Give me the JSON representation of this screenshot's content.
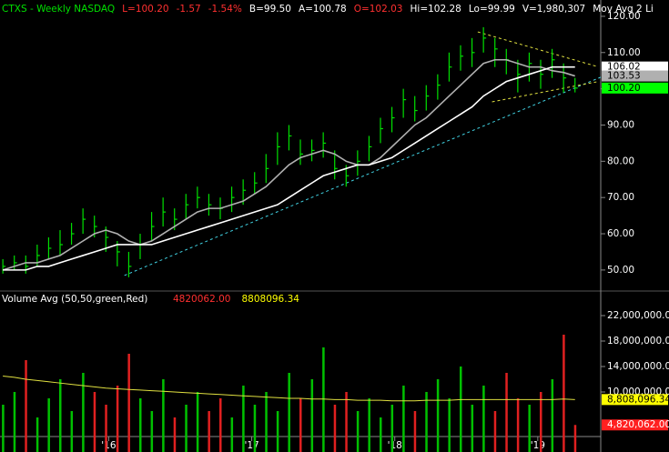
{
  "chart_data": {
    "type": "ohlc",
    "header": [
      {
        "text": "CTXS - Weekly  NASDAQ",
        "color": "#00e000"
      },
      {
        "text": "L=100.20",
        "color": "#ff3030"
      },
      {
        "text": "-1.57",
        "color": "#ff3030"
      },
      {
        "text": "-1.54%",
        "color": "#ff3030"
      },
      {
        "text": "B=99.50",
        "color": "#ffffff"
      },
      {
        "text": "A=100.78",
        "color": "#ffffff"
      },
      {
        "text": "O=102.03",
        "color": "#ff3030"
      },
      {
        "text": "Hi=102.28",
        "color": "#ffffff"
      },
      {
        "text": "Lo=99.99",
        "color": "#ffffff"
      },
      {
        "text": "V=1,980,307",
        "color": "#ffffff"
      },
      {
        "text": "Mov Avg 2 Li",
        "color": "#ffffff"
      }
    ],
    "x": [
      2015.26,
      2015.34,
      2015.42,
      2015.5,
      2015.58,
      2015.66,
      2015.74,
      2015.82,
      2015.9,
      2015.98,
      2016.06,
      2016.14,
      2016.22,
      2016.3,
      2016.38,
      2016.46,
      2016.54,
      2016.62,
      2016.7,
      2016.78,
      2016.86,
      2016.94,
      2017.02,
      2017.1,
      2017.18,
      2017.26,
      2017.34,
      2017.42,
      2017.5,
      2017.58,
      2017.66,
      2017.74,
      2017.82,
      2017.9,
      2017.98,
      2018.06,
      2018.14,
      2018.22,
      2018.3,
      2018.38,
      2018.46,
      2018.54,
      2018.62,
      2018.7,
      2018.78,
      2018.86,
      2018.94,
      2019.02,
      2019.1,
      2019.18,
      2019.26
    ],
    "xlim": [
      2015.24,
      2019.44
    ],
    "xticks": [
      {
        "value": 2016,
        "label": "'16"
      },
      {
        "value": 2017,
        "label": "'17"
      },
      {
        "value": 2018,
        "label": "'18"
      },
      {
        "value": 2019,
        "label": "'19"
      }
    ],
    "ylim": [
      44.7,
      124.5
    ],
    "yticks": [
      {
        "value": 120,
        "label": "120.00"
      },
      {
        "value": 110,
        "label": "110.00"
      },
      {
        "value": 100,
        "label": "100.00"
      },
      {
        "value": 90,
        "label": "90.00"
      },
      {
        "value": 80,
        "label": "80.00"
      },
      {
        "value": 70,
        "label": "70.00"
      },
      {
        "value": 60,
        "label": "60.00"
      },
      {
        "value": 50,
        "label": "50.00"
      }
    ],
    "bar_color": "#00e000",
    "high": [
      53,
      54,
      54,
      57,
      59,
      61,
      63,
      67,
      65,
      62,
      58,
      55,
      60,
      66,
      70,
      67,
      71,
      73,
      71,
      70,
      73,
      75,
      77,
      82,
      88,
      90,
      86,
      86,
      88,
      83,
      79,
      83,
      87,
      92,
      95,
      100,
      98,
      101,
      104,
      110,
      112,
      114,
      117,
      114,
      111,
      108,
      110,
      108,
      111,
      107,
      103
    ],
    "low": [
      49,
      50,
      49,
      51,
      53,
      54,
      57,
      60,
      59,
      55,
      51,
      48,
      53,
      58,
      62,
      61,
      64,
      67,
      65,
      64,
      66,
      68,
      71,
      74,
      79,
      83,
      79,
      80,
      81,
      75,
      73,
      76,
      80,
      85,
      88,
      92,
      91,
      94,
      97,
      102,
      105,
      106,
      110,
      106,
      104,
      99,
      102,
      100,
      103,
      99,
      99
    ],
    "close": [
      51,
      52,
      51,
      54,
      56,
      57,
      60,
      64,
      62,
      59,
      55,
      51,
      57,
      62,
      66,
      64,
      68,
      70,
      68,
      67,
      70,
      72,
      74,
      78,
      84,
      87,
      82,
      83,
      85,
      78,
      76,
      80,
      84,
      89,
      92,
      97,
      94,
      98,
      101,
      106,
      109,
      110,
      114,
      111,
      108,
      104,
      107,
      104,
      108,
      103,
      100.2
    ],
    "moving_averages": [
      {
        "color": "#b0b0b0",
        "values": [
          50,
          51,
          52,
          52,
          53,
          54,
          56,
          58,
          60,
          61,
          60,
          58,
          57,
          58,
          60,
          62,
          64,
          66,
          67,
          67,
          68,
          69,
          71,
          73,
          76,
          79,
          81,
          82,
          83,
          82,
          80,
          79,
          79,
          81,
          84,
          87,
          90,
          92,
          95,
          98,
          101,
          104,
          107,
          108,
          108,
          107,
          106,
          106,
          105,
          104.5,
          103.53
        ]
      },
      {
        "color": "#ffffff",
        "values": [
          50,
          50,
          50,
          51,
          51,
          52,
          53,
          54,
          55,
          56,
          57,
          57,
          57,
          57,
          58,
          59,
          60,
          61,
          62,
          63,
          64,
          65,
          66,
          67,
          68,
          70,
          72,
          74,
          76,
          77,
          78,
          79,
          79,
          80,
          81,
          83,
          85,
          87,
          89,
          91,
          93,
          95,
          98,
          100,
          102,
          103,
          104,
          105,
          106,
          106,
          106.02
        ]
      }
    ],
    "trendlines": [
      {
        "color": "#40d0e0",
        "x": [
          2016.11,
          2019.44
        ],
        "y": [
          48.5,
          103.2
        ]
      },
      {
        "color": "#e0e040",
        "x": [
          2018.58,
          2019.41
        ],
        "y": [
          115.7,
          106.2
        ]
      },
      {
        "color": "#e0e040",
        "x": [
          2018.68,
          2019.41
        ],
        "y": [
          96.4,
          101.9
        ]
      }
    ],
    "price_tags": [
      {
        "value": 106.02,
        "label": "106.02",
        "color": "#ffffff",
        "text_color": "#000000"
      },
      {
        "value": 103.53,
        "label": "103.53",
        "color": "#b0b0b0",
        "text_color": "#000000"
      },
      {
        "value": 100.2,
        "label": "100.20",
        "color": "#00ff00",
        "text_color": "#000000"
      }
    ],
    "volume": {
      "title": "Volume Avg (50,50,green,Red)",
      "legend": [
        {
          "text": "4820062.00",
          "color": "#ff3030"
        },
        {
          "text": "8808096.34",
          "color": "#ffff00"
        }
      ],
      "up_color": "#00c000",
      "down_color": "#e02020",
      "avg_color": "#e0e040",
      "ylim": [
        570000,
        25570000
      ],
      "yticks": [
        {
          "value": 22000000,
          "label": "22,000,000.00"
        },
        {
          "value": 18000000,
          "label": "18,000,000.00"
        },
        {
          "value": 14000000,
          "label": "14,000,000.00"
        },
        {
          "value": 10000000,
          "label": "10,000,000.00"
        }
      ],
      "values": [
        8000000,
        10000000,
        15000000,
        6000000,
        9000000,
        12000000,
        7000000,
        13000000,
        10000000,
        8000000,
        11000000,
        16000000,
        9000000,
        7000000,
        12000000,
        6000000,
        8000000,
        10000000,
        7000000,
        9000000,
        6000000,
        11000000,
        8000000,
        10000000,
        7000000,
        13000000,
        9000000,
        12000000,
        17000000,
        8000000,
        10000000,
        7000000,
        9000000,
        6000000,
        8000000,
        11000000,
        7000000,
        10000000,
        12000000,
        9000000,
        14000000,
        8000000,
        11000000,
        7000000,
        13000000,
        9000000,
        8000000,
        10000000,
        12000000,
        19000000,
        4820062
      ],
      "avg": [
        12500000,
        12300000,
        12000000,
        11800000,
        11600000,
        11400000,
        11200000,
        11000000,
        10800000,
        10600000,
        10500000,
        10400000,
        10300000,
        10200000,
        10100000,
        10000000,
        9900000,
        9800000,
        9700000,
        9600000,
        9500000,
        9400000,
        9300000,
        9200000,
        9100000,
        9000000,
        9000000,
        8900000,
        8900000,
        8800000,
        8800000,
        8700000,
        8700000,
        8700000,
        8600000,
        8600000,
        8600000,
        8700000,
        8700000,
        8700000,
        8800000,
        8800000,
        8800000,
        8800000,
        8800000,
        8800000,
        8800000,
        8800000,
        8800000,
        8900000,
        8808096.34
      ],
      "tags": [
        {
          "value": 8808096.34,
          "label": "8,808,096.34",
          "color": "#ffff00",
          "text_color": "#000000"
        },
        {
          "value": 4820062,
          "label": "4,820,062.00",
          "color": "#ff2020",
          "text_color": "#ffffff"
        }
      ]
    }
  }
}
